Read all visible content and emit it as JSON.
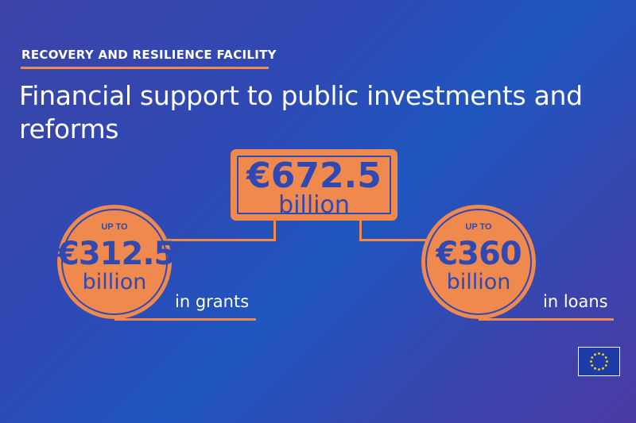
{
  "header": {
    "kicker": "RECOVERY AND RESILIENCE FACILITY",
    "title": "Financial support to public investments and reforms"
  },
  "total": {
    "amount": "€672.5",
    "unit": "billion"
  },
  "grants": {
    "prefix": "UP TO",
    "amount": "€312.5",
    "unit": "billion",
    "label": "in grants"
  },
  "loans": {
    "prefix": "UP TO",
    "amount": "€360",
    "unit": "billion",
    "label": "in loans"
  },
  "logo": {
    "icon": "eu-flag-icon"
  },
  "colors": {
    "accent": "#f0894d",
    "brand": "#2f49b4",
    "text": "#ffffff"
  }
}
